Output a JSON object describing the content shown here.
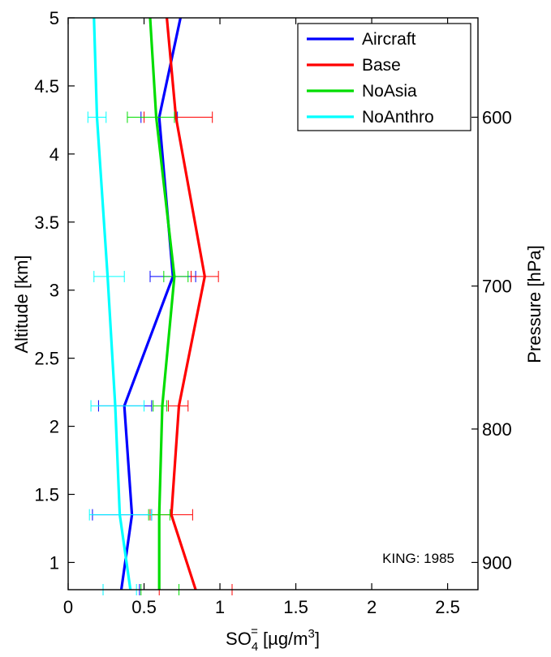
{
  "chart_data": {
    "type": "line",
    "orientation": "vertical-profile",
    "xlabel": "SO4= [µg/m3]",
    "xlabel_parts": {
      "base": "SO",
      "sub": "4",
      "sup": "=",
      "unit": " [µg/m",
      "unit_sup": "3",
      "unit_end": "]"
    },
    "ylabel": "Altitude [km]",
    "y2label": "Pressure [hPa]",
    "xlim": [
      0,
      2.7
    ],
    "ylim": [
      0.8,
      5.0
    ],
    "xticks": [
      0,
      0.5,
      1,
      1.5,
      2,
      2.5
    ],
    "xtick_labels": [
      "0",
      "0.5",
      "1",
      "1.5",
      "2",
      "2.5"
    ],
    "yticks": [
      1,
      1.5,
      2,
      2.5,
      3,
      3.5,
      4,
      4.5,
      5
    ],
    "ytick_labels": [
      "1",
      "1.5",
      "2",
      "2.5",
      "3",
      "3.5",
      "4",
      "4.5",
      "5"
    ],
    "y2ticks": [
      {
        "label": "600",
        "altitude": 4.27
      },
      {
        "label": "700",
        "altitude": 3.03
      },
      {
        "label": "800",
        "altitude": 1.98
      },
      {
        "label": "900",
        "altitude": 1.0
      }
    ],
    "grid": false,
    "legend_position": "top-right",
    "annotation": "KING: 1985",
    "series": [
      {
        "name": "Aircraft",
        "color": "#0000ff",
        "x": [
          0.35,
          0.42,
          0.37,
          0.69,
          0.6,
          0.74
        ],
        "y": [
          0.8,
          1.35,
          2.15,
          3.1,
          4.27,
          5.0
        ],
        "errors": [
          {
            "y": 0.8,
            "low": 0.23,
            "high": 0.47
          },
          {
            "y": 1.35,
            "low": 0.16,
            "high": 0.55
          },
          {
            "y": 2.15,
            "low": 0.2,
            "high": 0.55
          },
          {
            "y": 3.1,
            "low": 0.54,
            "high": 0.84
          },
          {
            "y": 4.27,
            "low": 0.48,
            "high": 0.72
          }
        ]
      },
      {
        "name": "Base",
        "color": "#ff0000",
        "x": [
          0.84,
          0.68,
          0.73,
          0.9,
          0.71,
          0.65
        ],
        "y": [
          0.8,
          1.35,
          2.15,
          3.1,
          4.27,
          5.0
        ],
        "errors": [
          {
            "y": 0.8,
            "low": 0.6,
            "high": 1.08
          },
          {
            "y": 1.35,
            "low": 0.54,
            "high": 0.82
          },
          {
            "y": 2.15,
            "low": 0.66,
            "high": 0.79
          },
          {
            "y": 3.1,
            "low": 0.81,
            "high": 0.99
          },
          {
            "y": 4.27,
            "low": 0.5,
            "high": 0.95
          }
        ]
      },
      {
        "name": "NoAsia",
        "color": "#00dd00",
        "x": [
          0.6,
          0.6,
          0.62,
          0.7,
          0.58,
          0.54
        ],
        "y": [
          0.8,
          1.35,
          2.15,
          3.1,
          4.27,
          5.0
        ],
        "errors": [
          {
            "y": 0.8,
            "low": 0.48,
            "high": 0.73
          },
          {
            "y": 1.35,
            "low": 0.53,
            "high": 0.67
          },
          {
            "y": 2.15,
            "low": 0.56,
            "high": 0.65
          },
          {
            "y": 3.1,
            "low": 0.63,
            "high": 0.79
          },
          {
            "y": 4.27,
            "low": 0.39,
            "high": 0.7
          }
        ]
      },
      {
        "name": "NoAnthro",
        "color": "#00ffff",
        "x": [
          0.41,
          0.34,
          0.31,
          0.26,
          0.19,
          0.17
        ],
        "y": [
          0.8,
          1.35,
          2.15,
          3.1,
          4.27,
          5.0
        ],
        "errors": [
          {
            "y": 0.8,
            "low": 0.23,
            "high": 0.45
          },
          {
            "y": 1.35,
            "low": 0.14,
            "high": 0.55
          },
          {
            "y": 2.15,
            "low": 0.15,
            "high": 0.5
          },
          {
            "y": 3.1,
            "low": 0.17,
            "high": 0.37
          },
          {
            "y": 4.27,
            "low": 0.13,
            "high": 0.25
          }
        ]
      }
    ]
  }
}
